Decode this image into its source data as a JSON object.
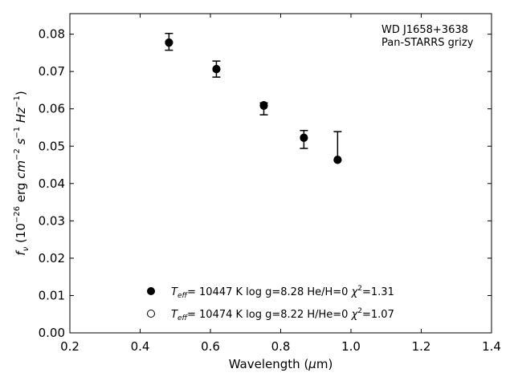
{
  "chart_data": {
    "type": "scatter",
    "annotation": {
      "line1": "WD J1658+3638",
      "line2": "Pan-STARRS grizy"
    },
    "xlabel": "Wavelength (μm)",
    "ylabel": "f_ν (10^−26 erg cm^−2 s^−1 Hz^−1)",
    "xlim": [
      0.2,
      1.4
    ],
    "ylim": [
      0.0,
      0.0855
    ],
    "xticks": [
      0.2,
      0.4,
      0.6,
      0.8,
      1.0,
      1.2,
      1.4
    ],
    "xtick_labels": [
      "0.2",
      "0.4",
      "0.6",
      "0.8",
      "1.0",
      "1.2",
      "1.4"
    ],
    "yticks": [
      0.0,
      0.01,
      0.02,
      0.03,
      0.04,
      0.05,
      0.06,
      0.07,
      0.08
    ],
    "ytick_labels": [
      "0.00",
      "0.01",
      "0.02",
      "0.03",
      "0.04",
      "0.05",
      "0.06",
      "0.07",
      "0.08"
    ],
    "observed": {
      "x": [
        0.482,
        0.617,
        0.752,
        0.866,
        0.962
      ],
      "y": [
        0.0779,
        0.0706,
        0.06,
        0.0517,
        0.0462
      ],
      "yerr_low": [
        0.0022,
        0.0021,
        0.0016,
        0.0023,
        0.0
      ],
      "yerr_high": [
        0.0023,
        0.0022,
        0.0016,
        0.0025,
        0.0077
      ]
    },
    "series": [
      {
        "marker": "filled",
        "label": "T_eff= 10447 K  log g=8.28  He/H=0  χ²=1.31",
        "x": [
          0.482,
          0.617,
          0.752,
          0.866,
          0.962
        ],
        "y": [
          0.0778,
          0.0707,
          0.061,
          0.0523,
          0.0464
        ]
      },
      {
        "marker": "open",
        "label": "T_eff= 10474 K  log g=8.22  H/He=0  χ²=1.07",
        "x": [
          0.482,
          0.617,
          0.752,
          0.866,
          0.962
        ],
        "y": [
          0.0777,
          0.0706,
          0.0608,
          0.0522,
          0.0463
        ]
      }
    ],
    "legend": {
      "placement": "lower-center",
      "entries": [
        {
          "marker": "filled",
          "teff": "10447",
          "logg": "8.28",
          "comp": "He/H=0",
          "chi2": "1.31"
        },
        {
          "marker": "open",
          "teff": "10474",
          "logg": "8.22",
          "comp": "H/He=0",
          "chi2": "1.07"
        }
      ]
    },
    "grid": false
  }
}
